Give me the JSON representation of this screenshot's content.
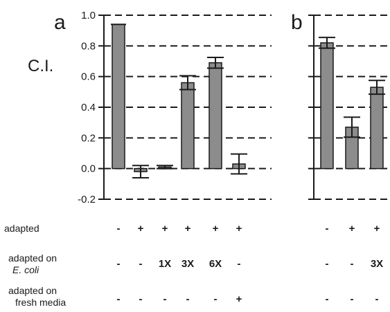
{
  "chart_data": [
    {
      "panel": "a",
      "type": "bar",
      "ylabel": "C.I.",
      "ylim": [
        -0.2,
        1.0
      ],
      "yticks": [
        "1.0",
        "0.8",
        "0.6",
        "0.4",
        "0.2",
        "0.0",
        "-0.2"
      ],
      "grid": true,
      "values": [
        0.94,
        -0.02,
        0.01,
        0.56,
        0.69,
        0.03
      ],
      "errors": [
        0.0,
        0.04,
        0.01,
        0.045,
        0.035,
        0.065
      ],
      "conditions": {
        "adapted": [
          "-",
          "+",
          "+",
          "+",
          "+",
          "+"
        ],
        "adapted_on_e_coli": [
          "-",
          "-",
          "1X",
          "3X",
          "6X",
          "-"
        ],
        "adapted_on_fresh_media": [
          "-",
          "-",
          "-",
          "-",
          "-",
          "+"
        ]
      }
    },
    {
      "panel": "b",
      "type": "bar",
      "ylim": [
        -0.2,
        1.0
      ],
      "grid": true,
      "values": [
        0.82,
        0.27,
        0.53
      ],
      "errors": [
        0.035,
        0.065,
        0.045
      ],
      "conditions": {
        "adapted": [
          "-",
          "+",
          "+"
        ],
        "adapted_on_e_coli": [
          "-",
          "-",
          "3X"
        ],
        "adapted_on_fresh_media": [
          "-",
          "-",
          "-"
        ]
      }
    }
  ],
  "row_labels": {
    "adapted": "adapted",
    "adapted_on_prefix": "adapted on",
    "e_coli": "E. coli",
    "fresh_media": "fresh media"
  }
}
